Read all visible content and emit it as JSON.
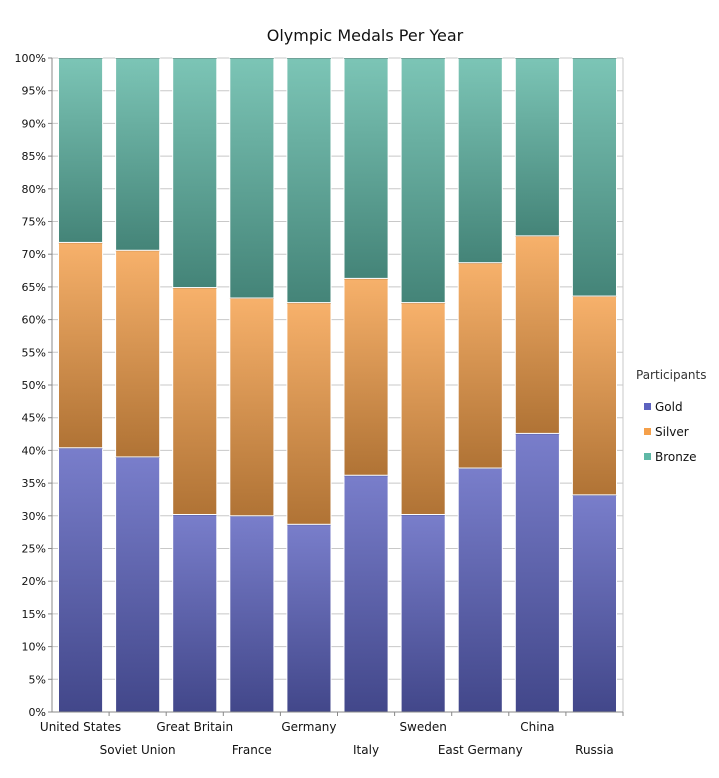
{
  "chart_data": {
    "type": "bar",
    "stacked": true,
    "normalized": true,
    "title": "Olympic Medals Per Year",
    "xlabel": "",
    "ylabel": "",
    "ylim": [
      0,
      100
    ],
    "y_ticks": [
      "0%",
      "5%",
      "10%",
      "15%",
      "20%",
      "25%",
      "30%",
      "35%",
      "40%",
      "45%",
      "50%",
      "55%",
      "60%",
      "65%",
      "70%",
      "75%",
      "80%",
      "85%",
      "90%",
      "95%",
      "100%"
    ],
    "grid": "horizontal",
    "legend": {
      "title": "Participants",
      "position": "right"
    },
    "categories": [
      "United States",
      "Soviet Union",
      "Great Britain",
      "France",
      "Germany",
      "Italy",
      "Sweden",
      "East Germany",
      "China",
      "Russia"
    ],
    "series": [
      {
        "name": "Gold",
        "color": "#5c62bf",
        "values": [
          40.4,
          39.0,
          30.2,
          30.0,
          28.7,
          36.2,
          30.2,
          37.3,
          42.6,
          33.2
        ]
      },
      {
        "name": "Silver",
        "color": "#f5a04a",
        "values": [
          31.4,
          31.6,
          34.7,
          33.3,
          33.9,
          30.1,
          32.4,
          31.4,
          30.2,
          30.4
        ]
      },
      {
        "name": "Bronze",
        "color": "#5fb8a6",
        "values": [
          28.2,
          29.4,
          35.1,
          36.7,
          37.4,
          33.7,
          37.4,
          31.3,
          27.2,
          36.4
        ]
      }
    ]
  }
}
